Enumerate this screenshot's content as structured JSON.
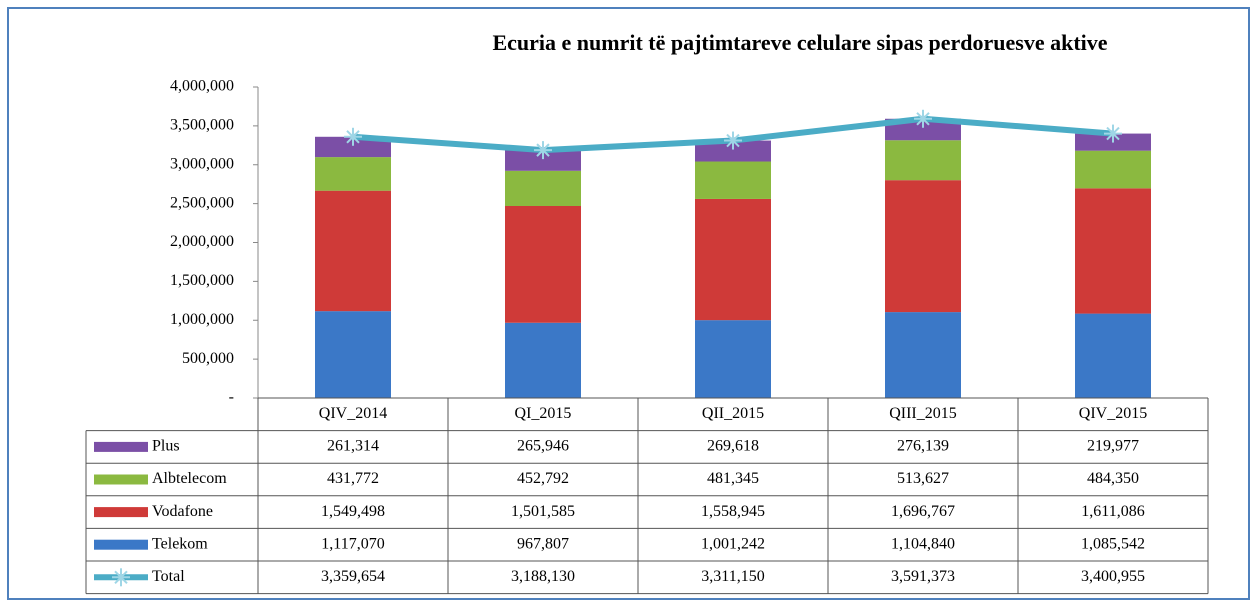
{
  "chart_data": {
    "type": "bar",
    "stacked": true,
    "title": "Ecuria e numrit të pajtimtareve celulare  sipas perdoruesve aktive",
    "categories": [
      "QIV_2014",
      "QI_2015",
      "QII_2015",
      "QIII_2015",
      "QIV_2015"
    ],
    "series": [
      {
        "name": "Telekom",
        "color": "#3b78c7",
        "values": [
          1117070,
          967807,
          1001242,
          1104840,
          1085542
        ],
        "value_labels": [
          "1,117,070",
          "967,807",
          "1,001,242",
          "1,104,840",
          "1,085,542"
        ]
      },
      {
        "name": "Vodafone",
        "color": "#cf3a38",
        "values": [
          1549498,
          1501585,
          1558945,
          1696767,
          1611086
        ],
        "value_labels": [
          "1,549,498",
          "1,501,585",
          "1,558,945",
          "1,696,767",
          "1,611,086"
        ]
      },
      {
        "name": "Albtelecom",
        "color": "#8bb940",
        "values": [
          431772,
          452792,
          481345,
          513627,
          484350
        ],
        "value_labels": [
          "431,772",
          "452,792",
          "481,345",
          "513,627",
          "484,350"
        ]
      },
      {
        "name": "Plus",
        "color": "#7b4fa6",
        "values": [
          261314,
          265946,
          269618,
          276139,
          219977
        ],
        "value_labels": [
          "261,314",
          "265,946",
          "269,618",
          "276,139",
          "219,977"
        ]
      },
      {
        "name": "Total",
        "type": "line",
        "color": "#4bacc6",
        "values": [
          3359654,
          3188130,
          3311150,
          3591373,
          3400955
        ],
        "value_labels": [
          "3,359,654",
          "3,188,130",
          "3,311,150",
          "3,591,373",
          "3,400,955"
        ]
      }
    ],
    "ylim": [
      0,
      4000000
    ],
    "yticks": [
      {
        "value": 0,
        "label": "-"
      },
      {
        "value": 500000,
        "label": "500,000"
      },
      {
        "value": 1000000,
        "label": "1,000,000"
      },
      {
        "value": 1500000,
        "label": "1,500,000"
      },
      {
        "value": 2000000,
        "label": "2,000,000"
      },
      {
        "value": 2500000,
        "label": "2,500,000"
      },
      {
        "value": 3000000,
        "label": "3,000,000"
      },
      {
        "value": 3500000,
        "label": "3,500,000"
      },
      {
        "value": 4000000,
        "label": "4,000,000"
      }
    ],
    "data_table": true
  }
}
